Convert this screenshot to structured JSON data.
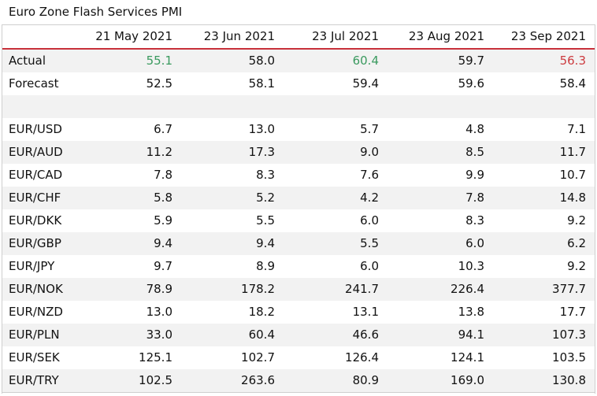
{
  "title": "Euro Zone Flash Services PMI",
  "headers": [
    "",
    "21 May 2021",
    "23 Jun 2021",
    "23 Jul 2021",
    "23 Aug 2021",
    "23 Sep 2021"
  ],
  "rows": [
    {
      "label": "Actual",
      "values": [
        "55.1",
        "58.0",
        "60.4",
        "59.7",
        "56.3"
      ],
      "value_colors": [
        "#3a9a5f",
        "",
        "#3a9a5f",
        "",
        "#cc3b3f"
      ]
    },
    {
      "label": "Forecast",
      "values": [
        "52.5",
        "58.1",
        "59.4",
        "59.6",
        "58.4"
      ]
    },
    {
      "label": "",
      "values": [
        "",
        "",
        "",
        "",
        ""
      ]
    },
    {
      "label": "EUR/USD",
      "values": [
        "6.7",
        "13.0",
        "5.7",
        "4.8",
        "7.1"
      ]
    },
    {
      "label": "EUR/AUD",
      "values": [
        "11.2",
        "17.3",
        "9.0",
        "8.5",
        "11.7"
      ]
    },
    {
      "label": "EUR/CAD",
      "values": [
        "7.8",
        "8.3",
        "7.6",
        "9.9",
        "10.7"
      ]
    },
    {
      "label": "EUR/CHF",
      "values": [
        "5.8",
        "5.2",
        "4.2",
        "7.8",
        "14.8"
      ]
    },
    {
      "label": "EUR/DKK",
      "values": [
        "5.9",
        "5.5",
        "6.0",
        "8.3",
        "9.2"
      ]
    },
    {
      "label": "EUR/GBP",
      "values": [
        "9.4",
        "9.4",
        "5.5",
        "6.0",
        "6.2"
      ]
    },
    {
      "label": "EUR/JPY",
      "values": [
        "9.7",
        "8.9",
        "6.0",
        "10.3",
        "9.2"
      ]
    },
    {
      "label": "EUR/NOK",
      "values": [
        "78.9",
        "178.2",
        "241.7",
        "226.4",
        "377.7"
      ]
    },
    {
      "label": "EUR/NZD",
      "values": [
        "13.0",
        "18.2",
        "13.1",
        "13.8",
        "17.7"
      ]
    },
    {
      "label": "EUR/PLN",
      "values": [
        "33.0",
        "60.4",
        "46.6",
        "94.1",
        "107.3"
      ]
    },
    {
      "label": "EUR/SEK",
      "values": [
        "125.1",
        "102.7",
        "126.4",
        "124.1",
        "103.5"
      ]
    },
    {
      "label": "EUR/TRY",
      "values": [
        "102.5",
        "263.6",
        "80.9",
        "169.0",
        "130.8"
      ]
    }
  ]
}
